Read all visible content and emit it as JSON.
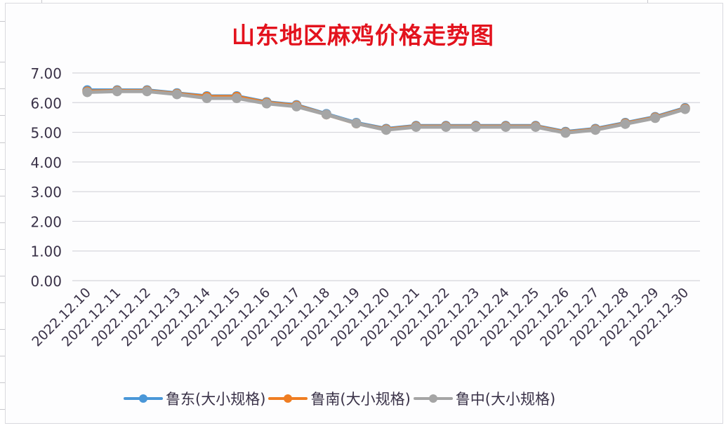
{
  "chart_data": {
    "type": "line",
    "title": "山东地区麻鸡价格走势图",
    "xlabel": "",
    "ylabel": "",
    "ylim": [
      0,
      7
    ],
    "yticks": [
      "0.00",
      "1.00",
      "2.00",
      "3.00",
      "4.00",
      "5.00",
      "6.00",
      "7.00"
    ],
    "grid": true,
    "legend_position": "bottom",
    "categories": [
      "2022.12.10",
      "2022.12.11",
      "2022.12.12",
      "2022.12.13",
      "2022.12.14",
      "2022.12.15",
      "2022.12.16",
      "2022.12.17",
      "2022.12.18",
      "2022.12.19",
      "2022.12.20",
      "2022.12.21",
      "2022.12.22",
      "2022.12.23",
      "2022.12.24",
      "2022.12.25",
      "2022.12.26",
      "2022.12.27",
      "2022.12.28",
      "2022.12.29",
      "2022.12.30"
    ],
    "series": [
      {
        "name": "鲁东(大小规格)",
        "color": "#4a97d8",
        "values": [
          6.42,
          6.42,
          6.42,
          6.32,
          6.22,
          6.22,
          6.02,
          5.92,
          5.62,
          5.32,
          5.12,
          5.22,
          5.22,
          5.22,
          5.22,
          5.22,
          5.02,
          5.12,
          5.32,
          5.52,
          5.82
        ]
      },
      {
        "name": "鲁南(大小规格)",
        "color": "#ef7d22",
        "values": [
          6.38,
          6.4,
          6.4,
          6.3,
          6.2,
          6.2,
          6.0,
          5.9,
          5.6,
          5.3,
          5.1,
          5.2,
          5.2,
          5.2,
          5.2,
          5.2,
          5.0,
          5.1,
          5.3,
          5.5,
          5.8
        ]
      },
      {
        "name": "鲁中(大小规格)",
        "color": "#a5a5a5",
        "values": [
          6.35,
          6.38,
          6.38,
          6.28,
          6.15,
          6.15,
          5.97,
          5.87,
          5.6,
          5.3,
          5.08,
          5.18,
          5.18,
          5.18,
          5.18,
          5.18,
          4.98,
          5.08,
          5.28,
          5.48,
          5.78
        ]
      }
    ]
  },
  "legend": {
    "items": [
      {
        "label": "鲁东(大小规格)",
        "color": "#4a97d8"
      },
      {
        "label": "鲁南(大小规格)",
        "color": "#ef7d22"
      },
      {
        "label": "鲁中(大小规格)",
        "color": "#a5a5a5"
      }
    ]
  },
  "colors": {
    "title": "#e3121d",
    "grid": "#d6d6dc",
    "axis_text": "#3a3248"
  }
}
